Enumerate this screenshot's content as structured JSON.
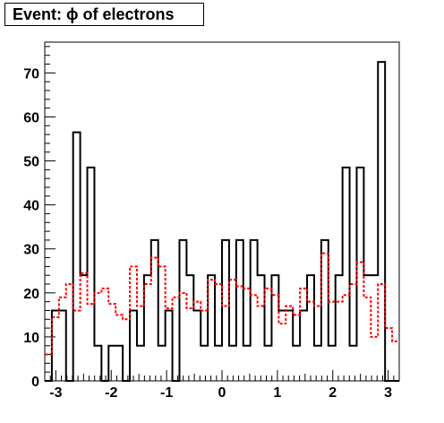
{
  "chart_data": {
    "type": "histogram",
    "title": "Event: ϕ of electrons",
    "xlabel": "",
    "ylabel": "",
    "xlim": [
      -3.2,
      3.2
    ],
    "ylim": [
      0,
      77
    ],
    "x_ticks": [
      -3,
      -2,
      -1,
      0,
      1,
      2,
      3
    ],
    "y_ticks": [
      0,
      10,
      20,
      30,
      40,
      50,
      60,
      70
    ],
    "grid": false,
    "legend": "none",
    "bin_width": 0.128,
    "series": [
      {
        "style": "solid",
        "color": "#000000",
        "values": [
          0,
          16,
          16,
          0,
          56.5,
          24,
          48.5,
          8,
          0,
          8,
          8,
          0,
          16,
          8,
          24,
          32,
          8,
          16,
          0,
          32,
          24,
          16,
          8,
          24,
          8,
          32,
          8,
          32,
          8,
          32,
          24,
          8,
          24,
          16,
          16,
          8,
          16,
          24,
          8,
          32,
          8,
          24,
          48.5,
          8,
          48.5,
          24,
          24,
          72.5,
          0,
          0
        ]
      },
      {
        "style": "dashed",
        "color": "#ff0000",
        "values": [
          6,
          14.5,
          19,
          22,
          16,
          24.5,
          17.5,
          20,
          21,
          17.5,
          15,
          14,
          26,
          17,
          22,
          28,
          26,
          16.5,
          19,
          20,
          16.5,
          18,
          16,
          23,
          22,
          17,
          23,
          21.5,
          21,
          19.5,
          17,
          21,
          19.5,
          13,
          17,
          15,
          21,
          18,
          17,
          29,
          18,
          18,
          19.5,
          22,
          27,
          19,
          10,
          22,
          12,
          9
        ]
      }
    ]
  }
}
